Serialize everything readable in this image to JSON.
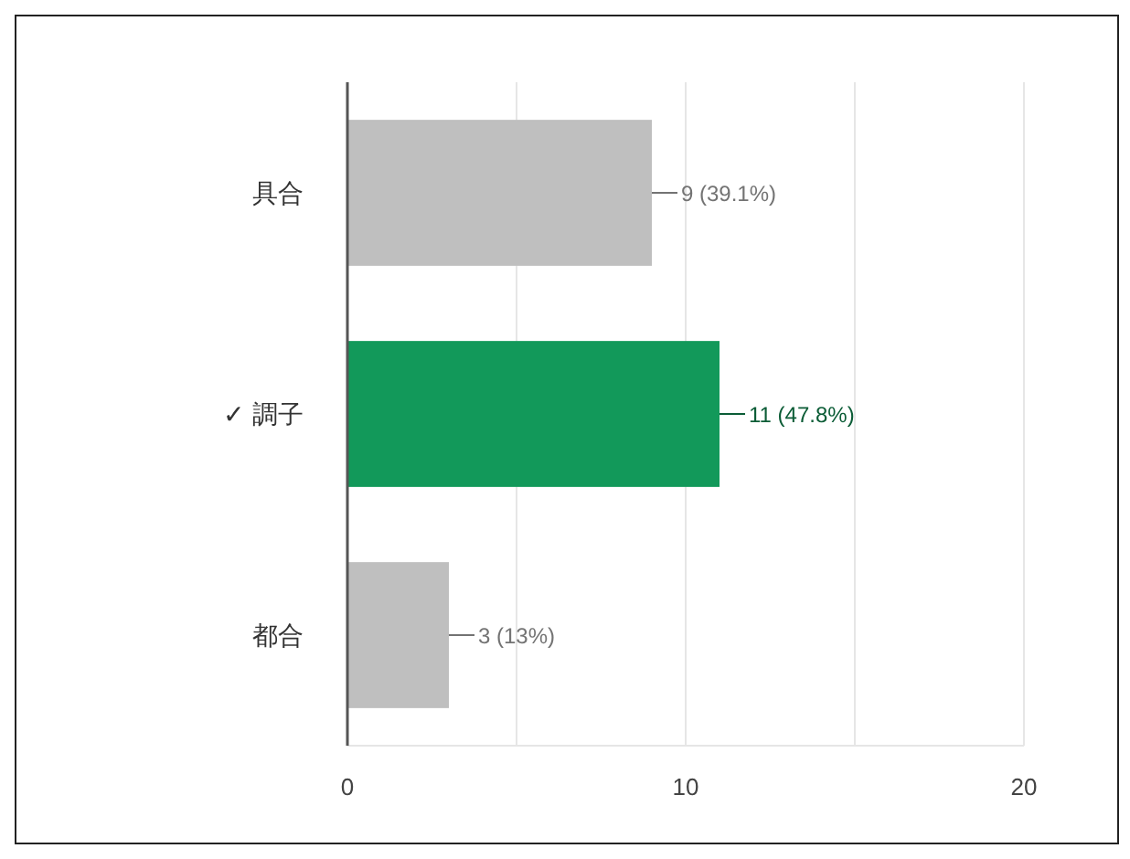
{
  "chart_data": {
    "type": "bar",
    "orientation": "horizontal",
    "categories": [
      "具合",
      "✓ 調子",
      "都合"
    ],
    "values": [
      9,
      11,
      3
    ],
    "colors": [
      "#bfbfbf",
      "#12995a",
      "#bfbfbf"
    ],
    "value_labels": [
      "9 (39.1%)",
      "11 (47.8%)",
      "3 (13%)"
    ],
    "xlim": [
      0,
      20
    ],
    "xticks": [
      0,
      {
        "value": 5,
        "label": null
      },
      10,
      {
        "value": 15,
        "label": null
      },
      20
    ],
    "grid": "x"
  }
}
